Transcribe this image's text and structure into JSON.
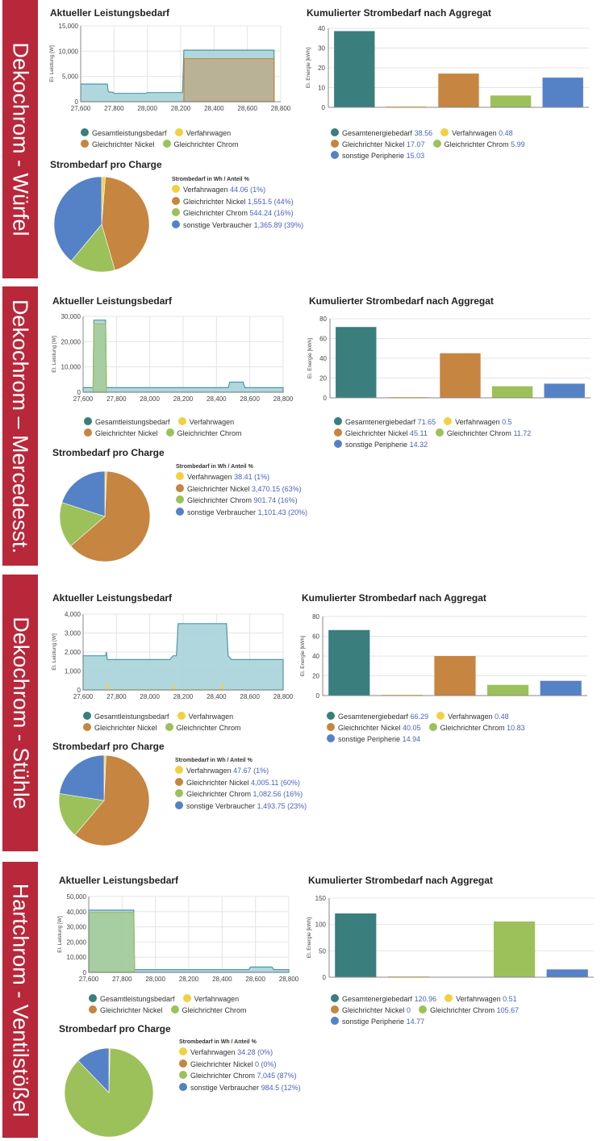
{
  "colors": {
    "teal": "#3a7e7e",
    "yellow": "#f2d043",
    "nickel": "#c68540",
    "chrom": "#9cc15a",
    "blue": "#5581c7",
    "tag": "#b8283a",
    "area": "#a8d3da",
    "areaStroke": "#4c99a4"
  },
  "panels": [
    {
      "label": "Dekochrom - Würfel",
      "line_title": "Aktueller Leistungsbedarf",
      "bar_title": "Kumulierter Strombedarf nach Aggregat",
      "pie_title": "Strombedarf pro Charge",
      "line_legend": {
        "g": "Gesamtleistungsbedarf",
        "v": "Verfahrwagen",
        "n": "Gleichrichter Nickel",
        "c": "Gleichrichter Chrom"
      },
      "bar_legend": [
        {
          "name": "Gesamtenergiebedarf",
          "value": "38.56"
        },
        {
          "name": "Verfahrwagen",
          "value": "0.48"
        },
        {
          "name": "Gleichrichter Nickel",
          "value": "17.07"
        },
        {
          "name": "Gleichrichter Chrom",
          "value": "5.99"
        },
        {
          "name": "sonstige Peripherie",
          "value": "15.03"
        }
      ],
      "pie_legend": {
        "head": "Strombedarf in Wh / Anteil %",
        "items": [
          {
            "name": "Verfahrwagen",
            "value": "44.06 (1%)"
          },
          {
            "name": "Gleichrichter Nickel",
            "value": "1,551.5 (44%)"
          },
          {
            "name": "Gleichrichter Chrom",
            "value": "544.24 (16%)"
          },
          {
            "name": "sonstige Verbraucher",
            "value": "1,365.89 (39%)"
          }
        ]
      }
    },
    {
      "label": "Dekochrom – Mercedesst.",
      "line_title": "Aktueller Leistungsbedarf",
      "bar_title": "Kumulierter Strombedarf nach Aggregat",
      "pie_title": "Strombedarf pro Charge",
      "line_legend": {
        "g": "Gesamtleistungsbedarf",
        "v": "Verfahrwagen",
        "n": "Gleichrichter Nickel",
        "c": "Gleichrichter Chrom"
      },
      "bar_legend": [
        {
          "name": "Gesamtenergiebedarf",
          "value": "71.65"
        },
        {
          "name": "Verfahrwagen",
          "value": "0.5"
        },
        {
          "name": "Gleichrichter Nickel",
          "value": "45.11"
        },
        {
          "name": "Gleichrichter Chrom",
          "value": "11.72"
        },
        {
          "name": "sonstige Peripherie",
          "value": "14.32"
        }
      ],
      "pie_legend": {
        "head": "Strombedarf in Wh / Anteil %",
        "items": [
          {
            "name": "Verfahrwagen",
            "value": "38.41 (1%)"
          },
          {
            "name": "Gleichrichter Nickel",
            "value": "3,470.15 (63%)"
          },
          {
            "name": "Gleichrichter Chrom",
            "value": "901.74 (16%)"
          },
          {
            "name": "sonstige Verbraucher",
            "value": "1,101.43 (20%)"
          }
        ]
      }
    },
    {
      "label": "Dekochrom - Stühle",
      "line_title": "Aktueller Leistungsbedarf",
      "bar_title": "Kumulierter Strombedarf nach Aggregat",
      "pie_title": "Strombedarf pro Charge",
      "line_legend": {
        "g": "Gesamtleistungsbedarf",
        "v": "Verfahrwagen",
        "n": "Gleichrichter Nickel",
        "c": "Gleichrichter Chrom"
      },
      "bar_legend": [
        {
          "name": "Gesamtenergiebedarf",
          "value": "66.29"
        },
        {
          "name": "Verfahrwagen",
          "value": "0.48"
        },
        {
          "name": "Gleichrichter Nickel",
          "value": "40.05"
        },
        {
          "name": "Gleichrichter Chrom",
          "value": "10.83"
        },
        {
          "name": "sonstige Peripherie",
          "value": "14.94"
        }
      ],
      "pie_legend": {
        "head": "Strombedarf in Wh / Anteil %",
        "items": [
          {
            "name": "Verfahrwagen",
            "value": "47.67 (1%)"
          },
          {
            "name": "Gleichrichter Nickel",
            "value": "4,005.11 (60%)"
          },
          {
            "name": "Gleichrichter Chrom",
            "value": "1,082.56 (16%)"
          },
          {
            "name": "sonstige Verbraucher",
            "value": "1,493.75 (23%)"
          }
        ]
      }
    },
    {
      "label": "Hartchrom - Ventilstößel",
      "line_title": "Aktueller Leistungsbedarf",
      "bar_title": "Kumulierter Strombedarf nach Aggregat",
      "pie_title": "Strombedarf pro Charge",
      "line_legend": {
        "g": "Gesamtleistungsbedarf",
        "v": "Verfahrwagen",
        "n": "Gleichrichter Nickel",
        "c": "Gleichrichter Chrom"
      },
      "bar_legend": [
        {
          "name": "Gesamtenergiebedarf",
          "value": "120.96"
        },
        {
          "name": "Verfahrwagen",
          "value": "0.51"
        },
        {
          "name": "Gleichrichter Nickel",
          "value": "0"
        },
        {
          "name": "Gleichrichter Chrom",
          "value": "105.67"
        },
        {
          "name": "sonstige Peripherie",
          "value": "14.77"
        }
      ],
      "pie_legend": {
        "head": "Strombedarf in Wh / Anteil %",
        "items": [
          {
            "name": "Verfahrwagen",
            "value": "34.28 (0%)"
          },
          {
            "name": "Gleichrichter Nickel",
            "value": "0 (0%)"
          },
          {
            "name": "Gleichrichter Chrom",
            "value": "7,045 (87%)"
          },
          {
            "name": "sonstige Verbraucher",
            "value": "984.5 (12%)"
          }
        ]
      }
    }
  ],
  "chart_data": [
    {
      "type": "area",
      "title": "Aktueller Leistungsbedarf",
      "ylabel": "El. Leistung [W]",
      "xlim": [
        27600,
        28800
      ],
      "ylim": [
        0,
        15000
      ],
      "yticks": [
        0,
        5000,
        10000,
        15000
      ],
      "xticks": [
        27600,
        27800,
        28000,
        28200,
        28400,
        28600,
        28800
      ],
      "series": [
        {
          "name": "Gesamtleistungsbedarf",
          "x": [
            27600,
            27601,
            27760,
            27765,
            27770,
            27790,
            27800,
            27990,
            28000,
            28210,
            28212,
            28219,
            28222,
            28760,
            28760
          ],
          "y": [
            0,
            3500,
            3500,
            2100,
            1900,
            1900,
            1650,
            1650,
            1800,
            1800,
            2600,
            10200,
            10200,
            10200,
            0
          ]
        },
        {
          "name": "Gleichrichter Nickel",
          "x": [
            28219,
            28221,
            28760,
            28760
          ],
          "y": [
            0,
            8500,
            8500,
            0
          ]
        }
      ]
    },
    {
      "type": "bar",
      "title": "Kumulierter Strombedarf nach Aggregat",
      "ylabel": "El. Energie [kWh]",
      "ylim": [
        0,
        40
      ],
      "yticks": [
        0,
        10,
        20,
        30,
        40
      ],
      "categories": [
        "Gesamtenergiebedarf",
        "Verfahrwagen",
        "Gleichrichter Nickel",
        "Gleichrichter Chrom",
        "sonstige Peripherie"
      ],
      "values": [
        38.56,
        0.48,
        17.07,
        5.99,
        15.03
      ]
    },
    {
      "type": "pie",
      "title": "Strombedarf pro Charge",
      "labels": [
        "Verfahrwagen",
        "Gleichrichter Nickel",
        "Gleichrichter Chrom",
        "sonstige Verbraucher"
      ],
      "values": [
        44.06,
        1551.5,
        544.24,
        1365.89
      ]
    },
    {
      "type": "area",
      "title": "Aktueller Leistungsbedarf",
      "ylabel": "El. Leistung [W]",
      "xlim": [
        27600,
        28800
      ],
      "ylim": [
        0,
        30000
      ],
      "yticks": [
        0,
        10000,
        20000,
        30000
      ],
      "xticks": [
        27600,
        27800,
        28000,
        28200,
        28400,
        28600,
        28800
      ],
      "series": [
        {
          "name": "Gesamtleistungsbedarf",
          "x": [
            27600,
            27600,
            27660,
            27665,
            27735,
            27740,
            28470,
            28480,
            28560,
            28570,
            28800,
            28800
          ],
          "y": [
            0,
            1800,
            1800,
            28500,
            28500,
            1800,
            1800,
            4000,
            4000,
            1800,
            1800,
            0
          ]
        },
        {
          "name": "Gleichrichter Chrom",
          "x": [
            27660,
            27665,
            27735,
            27740
          ],
          "y": [
            0,
            27000,
            27000,
            0
          ]
        }
      ]
    },
    {
      "type": "bar",
      "title": "Kumulierter Strombedarf nach Aggregat",
      "ylabel": "El. Energie [kWh]",
      "ylim": [
        0,
        80
      ],
      "yticks": [
        0,
        20,
        40,
        60,
        80
      ],
      "categories": [
        "Gesamtenergiebedarf",
        "Verfahrwagen",
        "Gleichrichter Nickel",
        "Gleichrichter Chrom",
        "sonstige Peripherie"
      ],
      "values": [
        71.65,
        0.5,
        45.11,
        11.72,
        14.32
      ]
    },
    {
      "type": "pie",
      "title": "Strombedarf pro Charge",
      "labels": [
        "Verfahrwagen",
        "Gleichrichter Nickel",
        "Gleichrichter Chrom",
        "sonstige Verbraucher"
      ],
      "values": [
        38.41,
        3470.15,
        901.74,
        1101.43
      ]
    },
    {
      "type": "area",
      "title": "Aktueller Leistungsbedarf",
      "ylabel": "El. Leistung [W]",
      "xlim": [
        27600,
        28800
      ],
      "ylim": [
        0,
        4000
      ],
      "yticks": [
        0,
        1000,
        2000,
        3000,
        4000
      ],
      "xticks": [
        27600,
        27800,
        28000,
        28200,
        28400,
        28600,
        28800
      ],
      "series": [
        {
          "name": "Gesamtleistungsbedarf",
          "x": [
            27600,
            27600,
            27735,
            27740,
            27745,
            27750,
            28120,
            28140,
            28160,
            28170,
            28180,
            28460,
            28470,
            28490,
            28800,
            28800
          ],
          "y": [
            0,
            1800,
            1800,
            2000,
            1600,
            1600,
            1600,
            1800,
            1800,
            3500,
            3500,
            3500,
            1800,
            1600,
            1600,
            0
          ]
        },
        {
          "name": "Verfahrwagen",
          "x": [
            27740,
            27745,
            27750,
            28140,
            28145,
            28150,
            28430,
            28435,
            28440
          ],
          "y": [
            0,
            400,
            0,
            0,
            350,
            0,
            0,
            400,
            0
          ]
        }
      ]
    },
    {
      "type": "bar",
      "title": "Kumulierter Strombedarf nach Aggregat",
      "ylabel": "El. Energie [kWh]",
      "ylim": [
        0,
        80
      ],
      "yticks": [
        0,
        20,
        40,
        60,
        80
      ],
      "categories": [
        "Gesamtenergiebedarf",
        "Verfahrwagen",
        "Gleichrichter Nickel",
        "Gleichrichter Chrom",
        "sonstige Peripherie"
      ],
      "values": [
        66.29,
        0.48,
        40.05,
        10.83,
        14.94
      ]
    },
    {
      "type": "pie",
      "title": "Strombedarf pro Charge",
      "labels": [
        "Verfahrwagen",
        "Gleichrichter Nickel",
        "Gleichrichter Chrom",
        "sonstige Verbraucher"
      ],
      "values": [
        47.67,
        4005.11,
        1082.56,
        1493.75
      ]
    },
    {
      "type": "area",
      "title": "Aktueller Leistungsbedarf",
      "ylabel": "El. Leistung [W]",
      "xlim": [
        27600,
        28800
      ],
      "ylim": [
        0,
        50000
      ],
      "yticks": [
        0,
        10000,
        20000,
        30000,
        40000,
        50000
      ],
      "xticks": [
        27600,
        27800,
        28000,
        28200,
        28400,
        28600,
        28800
      ],
      "series": [
        {
          "name": "Gesamtleistungsbedarf",
          "x": [
            27600,
            27600,
            27870,
            27875,
            28560,
            28570,
            28700,
            28710,
            28800,
            28800
          ],
          "y": [
            0,
            41000,
            41000,
            1800,
            1800,
            3500,
            3500,
            1800,
            1800,
            0
          ]
        },
        {
          "name": "Gleichrichter Chrom",
          "x": [
            27600,
            27600,
            27870,
            27875
          ],
          "y": [
            0,
            39500,
            39500,
            0
          ]
        }
      ]
    },
    {
      "type": "bar",
      "title": "Kumulierter Strombedarf nach Aggregat",
      "ylabel": "El. Energie [kWh]",
      "ylim": [
        0,
        150
      ],
      "yticks": [
        0,
        50,
        100,
        150
      ],
      "categories": [
        "Gesamtenergiebedarf",
        "Verfahrwagen",
        "Gleichrichter Nickel",
        "Gleichrichter Chrom",
        "sonstige Peripherie"
      ],
      "values": [
        120.96,
        0.51,
        0,
        105.67,
        14.77
      ]
    },
    {
      "type": "pie",
      "title": "Strombedarf pro Charge",
      "labels": [
        "Verfahrwagen",
        "Gleichrichter Nickel",
        "Gleichrichter Chrom",
        "sonstige Verbraucher"
      ],
      "values": [
        34.28,
        0,
        7045,
        984.5
      ]
    }
  ]
}
